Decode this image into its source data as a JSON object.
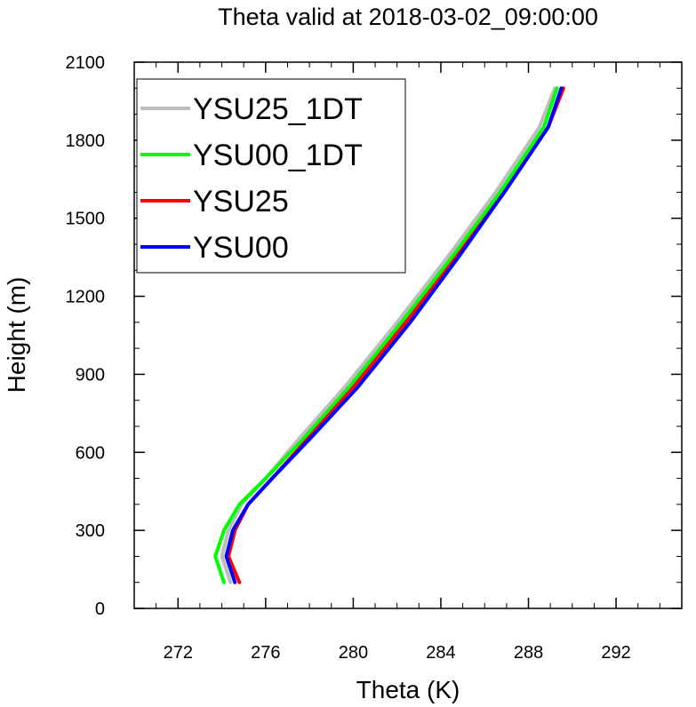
{
  "chart_data": {
    "type": "line",
    "title": "Theta valid at 2018-03-02_09:00:00",
    "xlabel": "Theta (K)",
    "ylabel": "Height (m)",
    "xlim": [
      270,
      295
    ],
    "ylim": [
      0,
      2100
    ],
    "xticks": [
      272,
      276,
      280,
      284,
      288,
      292
    ],
    "yticks": [
      0,
      300,
      600,
      900,
      1200,
      1500,
      1800,
      2100
    ],
    "xtick_labels": [
      "272",
      "276",
      "280",
      "284",
      "288",
      "292"
    ],
    "ytick_labels": [
      "0",
      "300",
      "600",
      "900",
      "1200",
      "1500",
      "1800",
      "2100"
    ],
    "legend_position": "top-left",
    "grid": false,
    "series": [
      {
        "name": "YSU25_1DT",
        "color": "#bdbdbd",
        "x": [
          274.4,
          274.0,
          274.3,
          274.9,
          276.0,
          277.5,
          279.6,
          282.0,
          284.3,
          286.5,
          288.5,
          289.2
        ],
        "y": [
          100,
          200,
          300,
          400,
          500,
          650,
          850,
          1100,
          1350,
          1600,
          1850,
          2000
        ]
      },
      {
        "name": "YSU00_1DT",
        "color": "#00ff00",
        "x": [
          274.1,
          273.7,
          274.1,
          274.8,
          276.0,
          277.7,
          279.8,
          282.2,
          284.5,
          286.7,
          288.7,
          289.3
        ],
        "y": [
          100,
          200,
          300,
          400,
          500,
          650,
          850,
          1100,
          1350,
          1600,
          1850,
          2000
        ]
      },
      {
        "name": "YSU25",
        "color": "#ff0000",
        "x": [
          274.8,
          274.3,
          274.6,
          275.2,
          276.3,
          277.9,
          280.0,
          282.4,
          284.7,
          286.9,
          288.9,
          289.6
        ],
        "y": [
          100,
          200,
          300,
          400,
          500,
          650,
          850,
          1100,
          1350,
          1600,
          1850,
          2000
        ]
      },
      {
        "name": "YSU00",
        "color": "#0000ff",
        "x": [
          274.6,
          274.2,
          274.5,
          275.2,
          276.3,
          278.0,
          280.2,
          282.6,
          284.8,
          286.9,
          288.9,
          289.5
        ],
        "y": [
          100,
          200,
          300,
          400,
          500,
          650,
          850,
          1100,
          1350,
          1600,
          1850,
          2000
        ]
      }
    ]
  }
}
